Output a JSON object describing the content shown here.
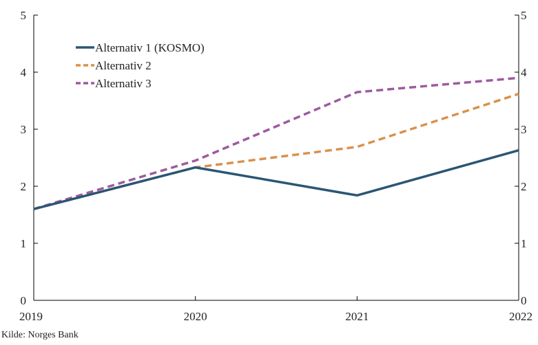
{
  "chart_data": {
    "type": "line",
    "x": [
      "2019",
      "2020",
      "2021",
      "2022"
    ],
    "series": [
      {
        "name": "Alternativ 1 (KOSMO)",
        "values": [
          1.6,
          2.33,
          1.84,
          2.63
        ],
        "color": "#2a5674",
        "dash": "solid"
      },
      {
        "name": "Alternativ 2",
        "values": [
          1.6,
          2.33,
          2.69,
          3.62
        ],
        "color": "#d9914a",
        "dash": "dashed"
      },
      {
        "name": "Alternativ 3",
        "values": [
          1.6,
          2.45,
          3.65,
          3.9
        ],
        "color": "#9d5aa0",
        "dash": "dashed"
      }
    ],
    "ylim": [
      0,
      5
    ],
    "yticks": [
      0,
      1,
      2,
      3,
      4,
      5
    ],
    "y_axis_left": true,
    "y_axis_right": true,
    "grid": false,
    "legend_position": "top-left",
    "title": "",
    "xlabel": "",
    "ylabel": ""
  },
  "source": "Kilde: Norges Bank"
}
